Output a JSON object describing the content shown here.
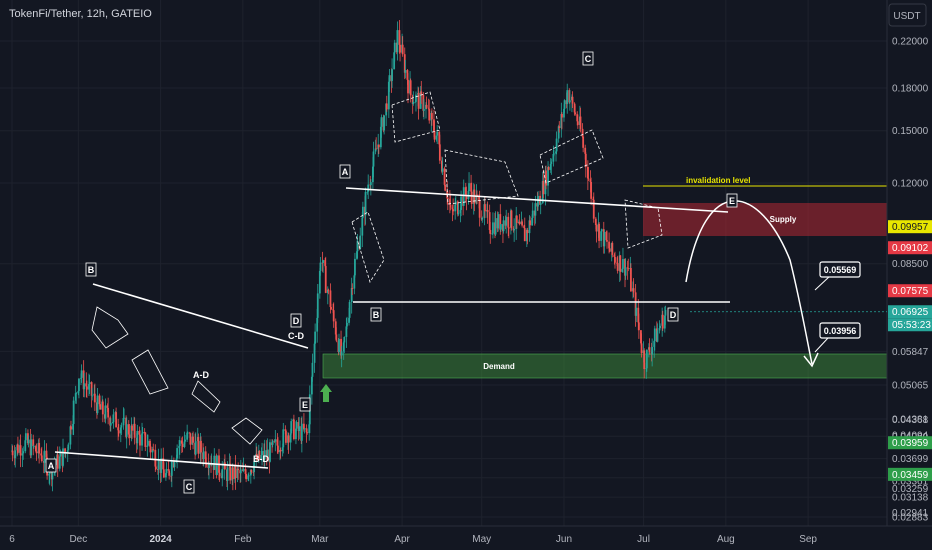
{
  "header": {
    "symbol": "TokenFi/Tether, 12h, GATEIO",
    "currency": "USDT"
  },
  "colors": {
    "background": "#131722",
    "up": "#26a69a",
    "down": "#ef5350",
    "supply": "#b22833",
    "demand": "#3d8c3a",
    "invalidation": "#e8e600",
    "last_price": "#26a69a"
  },
  "price_scale": {
    "ticks": [
      "0.22000",
      "0.18000",
      "0.15000",
      "0.12000",
      "0.08500",
      "0.05847",
      "0.05065",
      "0.04381",
      "0.04368",
      "0.04094",
      "0.04069",
      "0.03699",
      "0.03409",
      "0.03361",
      "0.03259",
      "0.03138",
      "0.02941",
      "0.02883"
    ],
    "badges": [
      {
        "value": "0.09957",
        "style": "yellow"
      },
      {
        "value": "0.09102",
        "style": "red"
      },
      {
        "value": "0.07575",
        "style": "red"
      },
      {
        "value": "0.06925",
        "style": "green"
      },
      {
        "value": "05:53:23",
        "style": "green"
      },
      {
        "value": "0.03959",
        "style": "green2"
      },
      {
        "value": "0.03459",
        "style": "green2"
      }
    ]
  },
  "time_axis": [
    "6",
    "Dec",
    "2024",
    "Feb",
    "Mar",
    "Apr",
    "May",
    "Jun",
    "Jul",
    "Aug",
    "Sep"
  ],
  "annotations": {
    "wave_labels": [
      "A",
      "B",
      "C",
      "D",
      "E",
      "A-D",
      "B-D",
      "C-D",
      "A",
      "B",
      "C",
      "D",
      "E"
    ],
    "supply": "Supply",
    "demand": "Demand",
    "invalidation": "invalidation level",
    "target_1": "0.05569",
    "target_2": "0.03956"
  },
  "chart_data": {
    "type": "candlestick",
    "title": "TokenFi/Tether, 12h, GATEIO",
    "y_unit": "USDT",
    "x_range": [
      "2023-11-06",
      "2024-09-10"
    ],
    "ylim": [
      0.0283,
      0.25
    ],
    "zones": {
      "supply": [
        0.07575,
        0.09102
      ],
      "demand": [
        0.03959,
        0.04381
      ],
      "invalidation_level": 0.09957
    },
    "last_price": 0.06925,
    "projected_targets": [
      0.05569,
      0.03956
    ],
    "key_points": [
      {
        "date": "2023-11-21",
        "value": 0.0346,
        "label": "A"
      },
      {
        "date": "2023-12-02",
        "value": 0.0545,
        "label": "B"
      },
      {
        "date": "2024-01-04",
        "value": 0.0334,
        "label": "C"
      },
      {
        "date": "2024-02-22",
        "value": 0.0425,
        "label": "D"
      },
      {
        "date": "2024-02-27",
        "value": 0.0405,
        "label": "E"
      },
      {
        "date": "2024-03-02",
        "value": 0.0905,
        "label": "A"
      },
      {
        "date": "2024-03-08",
        "value": 0.0512,
        "label": "B"
      },
      {
        "date": "2024-06-03",
        "value": 0.185,
        "label": "C"
      },
      {
        "date": "2024-07-02",
        "value": 0.0512,
        "label": "D"
      },
      {
        "date": "2024-07-28",
        "value": 0.087,
        "label": "E"
      }
    ],
    "close_path": [
      [
        "2023-11-06",
        0.0382
      ],
      [
        "2023-11-12",
        0.0395
      ],
      [
        "2023-11-18",
        0.0375
      ],
      [
        "2023-11-21",
        0.0352
      ],
      [
        "2023-11-27",
        0.038
      ],
      [
        "2023-12-02",
        0.053
      ],
      [
        "2023-12-10",
        0.0455
      ],
      [
        "2023-12-20",
        0.042
      ],
      [
        "2023-12-28",
        0.0395
      ],
      [
        "2024-01-04",
        0.034
      ],
      [
        "2024-01-08",
        0.039
      ],
      [
        "2024-01-12",
        0.0405
      ],
      [
        "2024-01-20",
        0.037
      ],
      [
        "2024-01-26",
        0.0348
      ],
      [
        "2024-02-02",
        0.0345
      ],
      [
        "2024-02-06",
        0.0365
      ],
      [
        "2024-02-12",
        0.038
      ],
      [
        "2024-02-20",
        0.042
      ],
      [
        "2024-02-26",
        0.041
      ],
      [
        "2024-03-02",
        0.088
      ],
      [
        "2024-03-06",
        0.07
      ],
      [
        "2024-03-10",
        0.056
      ],
      [
        "2024-03-14",
        0.08
      ],
      [
        "2024-03-20",
        0.12
      ],
      [
        "2024-03-26",
        0.16
      ],
      [
        "2024-03-31",
        0.225
      ],
      [
        "2024-04-05",
        0.175
      ],
      [
        "2024-04-10",
        0.168
      ],
      [
        "2024-04-15",
        0.145
      ],
      [
        "2024-04-20",
        0.105
      ],
      [
        "2024-04-27",
        0.117
      ],
      [
        "2024-05-05",
        0.1
      ],
      [
        "2024-05-12",
        0.103
      ],
      [
        "2024-05-18",
        0.096
      ],
      [
        "2024-05-24",
        0.115
      ],
      [
        "2024-05-30",
        0.145
      ],
      [
        "2024-06-03",
        0.178
      ],
      [
        "2024-06-08",
        0.15
      ],
      [
        "2024-06-14",
        0.1
      ],
      [
        "2024-06-20",
        0.088
      ],
      [
        "2024-06-26",
        0.083
      ],
      [
        "2024-07-02",
        0.056
      ],
      [
        "2024-07-06",
        0.062
      ],
      [
        "2024-07-10",
        0.0692
      ]
    ]
  }
}
